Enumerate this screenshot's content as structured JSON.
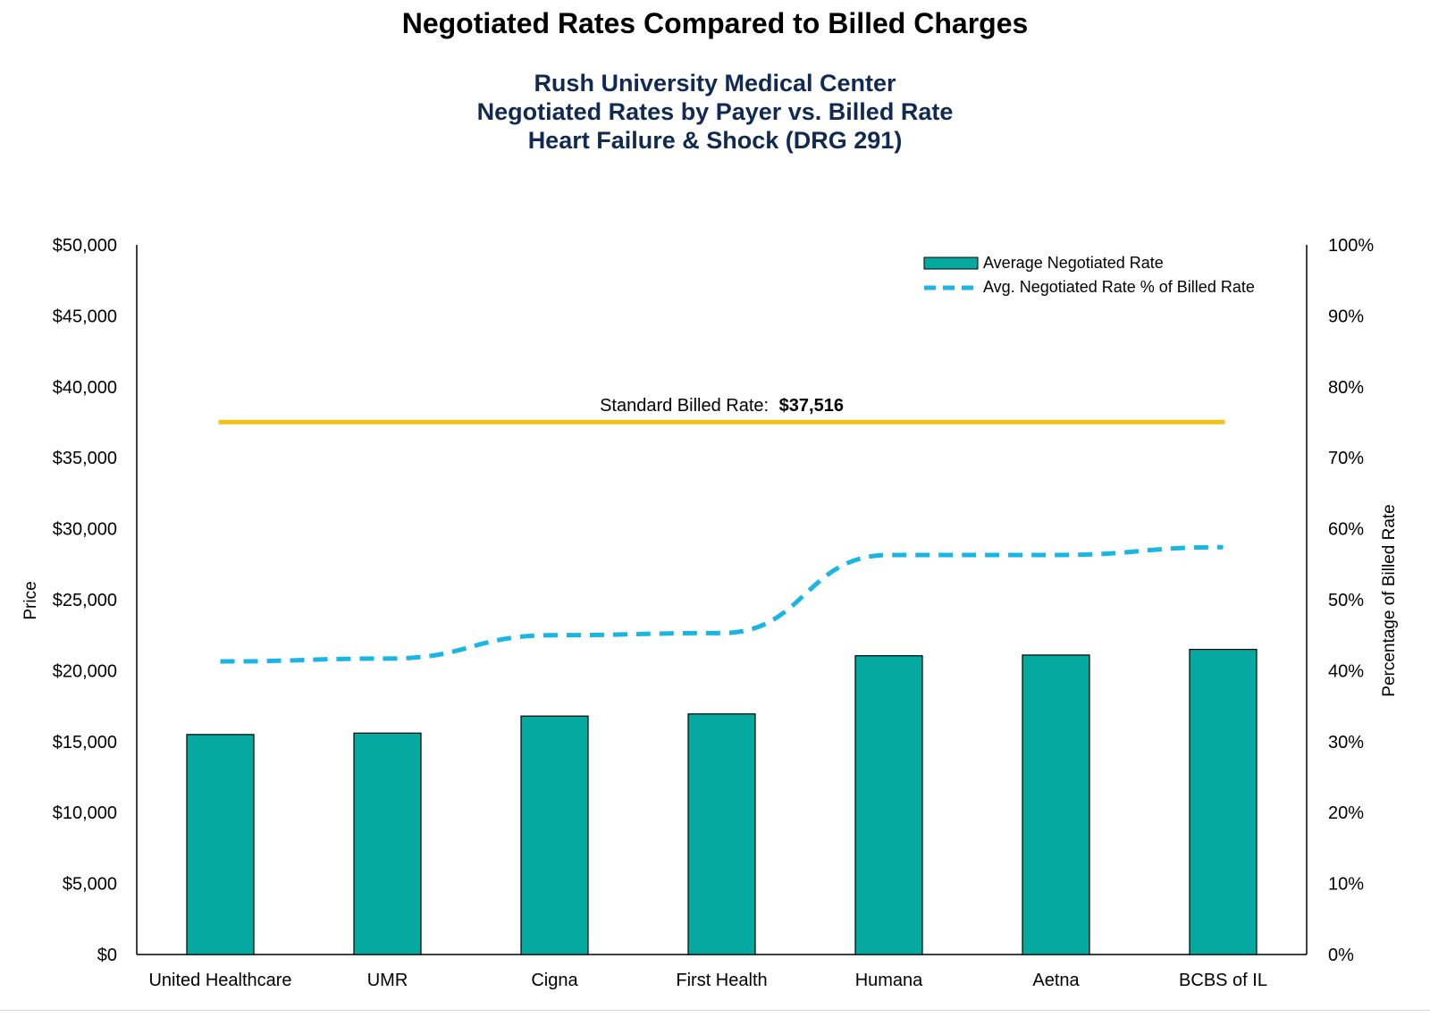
{
  "title": "Negotiated Rates Compared to Billed Charges",
  "subtitle_lines": [
    "Rush University Medical Center",
    "Negotiated Rates by Payer vs. Billed Rate",
    "Heart Failure & Shock (DRG 291)"
  ],
  "colors": {
    "bar_fill": "#05a9a0",
    "line": "#1ab6e3",
    "billed": "#f2c315",
    "subtitle": "#102a52"
  },
  "chart_data": {
    "type": "bar",
    "categories": [
      "United Healthcare",
      "UMR",
      "Cigna",
      "First Health",
      "Humana",
      "Aetna",
      "BCBS of IL"
    ],
    "series": [
      {
        "name": "Average Negotiated Rate",
        "type": "bar",
        "axis": "left",
        "values": [
          15500,
          15600,
          16800,
          16950,
          21050,
          21100,
          21500
        ]
      },
      {
        "name": "Avg. Negotiated Rate % of Billed Rate",
        "type": "line",
        "style": "dashed",
        "axis": "right",
        "values": [
          41.3,
          41.7,
          45.0,
          45.3,
          56.3,
          56.3,
          57.4
        ]
      }
    ],
    "reference_line": {
      "label": "Standard Billed Rate:",
      "value_label": "$37,516",
      "value": 37516
    },
    "ylabel": "Price",
    "ylabel_right": "Percentage of Billed Rate",
    "ylim": [
      0,
      50000
    ],
    "ylim_right": [
      0,
      100
    ],
    "yticks": [
      "$0",
      "$5,000",
      "$10,000",
      "$15,000",
      "$20,000",
      "$25,000",
      "$30,000",
      "$35,000",
      "$40,000",
      "$45,000",
      "$50,000"
    ],
    "yticks_right": [
      "0%",
      "10%",
      "20%",
      "30%",
      "40%",
      "50%",
      "60%",
      "70%",
      "80%",
      "90%",
      "100%"
    ],
    "legend_position": "top-right",
    "grid": false
  }
}
